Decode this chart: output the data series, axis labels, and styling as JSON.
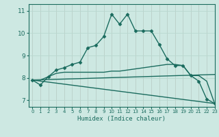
{
  "xlabel": "Humidex (Indice chaleur)",
  "ylabel": "",
  "background_color": "#cde8e2",
  "line_color": "#1a6b5e",
  "grid_color": "#b8d8d0",
  "xlim": [
    -0.5,
    23
  ],
  "ylim": [
    6.7,
    11.3
  ],
  "yticks": [
    7,
    8,
    9,
    10,
    11
  ],
  "xticks": [
    0,
    1,
    2,
    3,
    4,
    5,
    6,
    7,
    8,
    9,
    10,
    11,
    12,
    13,
    14,
    15,
    16,
    17,
    18,
    19,
    20,
    21,
    22,
    23
  ],
  "series": [
    {
      "x": [
        0,
        1,
        2,
        3,
        4,
        5,
        6,
        7,
        8,
        9,
        10,
        11,
        12,
        13,
        14,
        15,
        16,
        17,
        18,
        19,
        20,
        21,
        22,
        23
      ],
      "y": [
        7.9,
        7.68,
        8.05,
        8.35,
        8.45,
        8.6,
        8.7,
        9.35,
        9.45,
        9.85,
        10.85,
        10.4,
        10.85,
        10.1,
        10.1,
        10.1,
        9.5,
        8.85,
        8.55,
        8.55,
        8.1,
        7.85,
        7.05,
        6.85
      ],
      "marker": "D",
      "linewidth": 1.0,
      "markersize": 2.5
    },
    {
      "x": [
        0,
        1,
        2,
        3,
        4,
        5,
        6,
        7,
        8,
        9,
        10,
        11,
        12,
        13,
        14,
        15,
        16,
        17,
        18,
        19,
        20,
        21,
        22,
        23
      ],
      "y": [
        7.9,
        7.9,
        8.05,
        8.2,
        8.25,
        8.25,
        8.25,
        8.25,
        8.25,
        8.25,
        8.3,
        8.3,
        8.35,
        8.4,
        8.45,
        8.5,
        8.55,
        8.6,
        8.6,
        8.55,
        8.1,
        8.1,
        7.85,
        6.85
      ],
      "marker": null,
      "linewidth": 1.0,
      "markersize": 0
    },
    {
      "x": [
        0,
        23
      ],
      "y": [
        7.9,
        6.85
      ],
      "marker": null,
      "linewidth": 1.0,
      "markersize": 0
    },
    {
      "x": [
        0,
        23
      ],
      "y": [
        7.9,
        8.15
      ],
      "marker": null,
      "linewidth": 1.0,
      "markersize": 0
    }
  ]
}
